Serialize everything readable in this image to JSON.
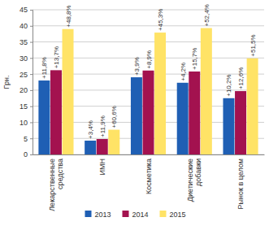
{
  "chart_data": {
    "type": "bar",
    "y_label": "Грн.",
    "categories": [
      "Лекарственные средства",
      "ИМН",
      "Косметика",
      "Диетические добавки",
      "Рынок в целом"
    ],
    "series": [
      {
        "name": "2013",
        "color": "#1f5fb4",
        "values": [
          23,
          4.3,
          24,
          22.3,
          17.5
        ],
        "growth_labels": [
          "+11,8%",
          "+3,4%",
          "+3,9%",
          "+4,2%",
          "+10,2%"
        ]
      },
      {
        "name": "2014",
        "color": "#a3124f",
        "values": [
          26.2,
          4.8,
          26.1,
          25.8,
          19.7
        ],
        "growth_labels": [
          "+13,7%",
          "+11,9%",
          "+8,9%",
          "+15,7%",
          "+12,6%"
        ]
      },
      {
        "name": "2015",
        "color": "#ffe366",
        "values": [
          39,
          7.7,
          37.9,
          39.3,
          29.9
        ],
        "growth_labels": [
          "+48,8%",
          "+60,6%",
          "+45,3%",
          "+52,4%",
          "+51,5%"
        ]
      }
    ],
    "ylim": [
      0,
      45
    ],
    "yticks": [
      0,
      5,
      10,
      15,
      20,
      25,
      30,
      35,
      40,
      45
    ],
    "grid": true,
    "legend": "bottom"
  }
}
